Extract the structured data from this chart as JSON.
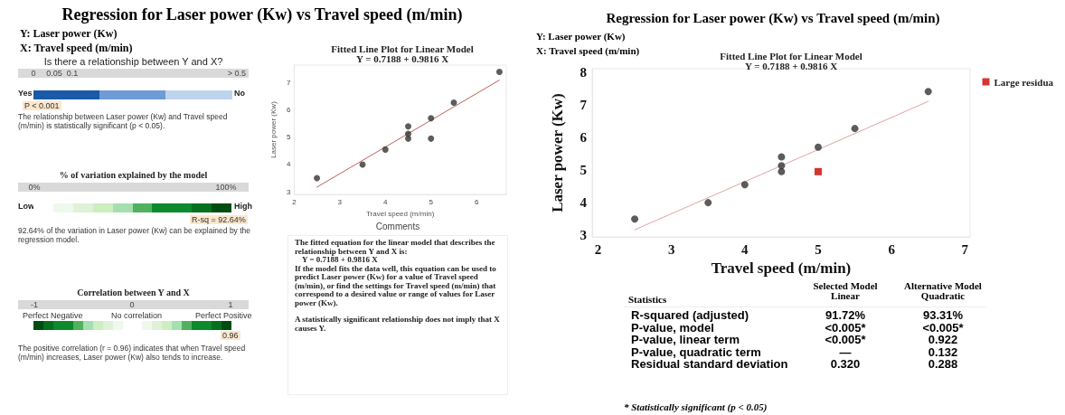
{
  "chart_data": [
    {
      "type": "other",
      "title": "Regression for Laser power (Kw) vs Travel speed (m/min)",
      "annotations": [
        "Y: Laser power (Kw)",
        "X: Travel speed (m/min)"
      ]
    },
    {
      "type": "other",
      "title": "Is there a relationship between Y and X?",
      "categories": [
        "0",
        "0.05",
        "0.1",
        "> 0.5"
      ],
      "colors": [
        "#1a5aa8",
        "#6f9bd6",
        "#bed3ee"
      ],
      "annotations": [
        "Yes",
        "No",
        "P < 0.001",
        "The relationship between Laser power (Kw) and Travel speed (m/min) is statistically significant (p < 0.05)."
      ]
    },
    {
      "type": "other",
      "title": "% of variation explained by the model",
      "categories": [
        "0%",
        "100%"
      ],
      "colors": [
        "#ffffff",
        "#eff8ec",
        "#dff1d8",
        "#cdeebf",
        "#a5dfb0",
        "#52b15e",
        "#0c8a2c",
        "#0c8a2c",
        "#06701f",
        "#004d12"
      ],
      "annotations": [
        "Low",
        "High",
        "R-sq = 92.64%",
        "92.64% of the variation in Laser power (Kw) can be explained by the regression model."
      ]
    },
    {
      "type": "other",
      "title": "Correlation between Y and X",
      "categories": [
        "-1",
        "0",
        "1"
      ],
      "colors": [
        "#004d12",
        "#06701f",
        "#0c8a2c",
        "#0c8a2c",
        "#52b15e",
        "#a5dfb0",
        "#cdeebf",
        "#dff1d8",
        "#eff8ec",
        "#ffffff",
        "#ffffff",
        "#eff8ec",
        "#dff1d8",
        "#cdeebf",
        "#a5dfb0",
        "#52b15e",
        "#0c8a2c",
        "#0c8a2c",
        "#06701f",
        "#004d12"
      ],
      "annotations": [
        "Perfect Negative",
        "No correlation",
        "Perfect Positive",
        "0.96",
        "The positive correlation (r = 0.96) indicates that when Travel speed (m/min) increases, Laser power (Kw) also tends to increase."
      ]
    },
    {
      "type": "scatter",
      "title": "Fitted Line Plot for Linear Model",
      "subtitle": "Y = 0.7188 + 0.9816 X",
      "xlabel": "Travel speed (m/min)",
      "ylabel": "Laser power (Kw)",
      "xlim": [
        2,
        6.65
      ],
      "ylim": [
        2.9,
        7.65
      ],
      "xticks": [
        2,
        3,
        4,
        5,
        6
      ],
      "yticks": [
        3,
        4,
        5,
        6,
        7
      ],
      "grid": false,
      "legend": false,
      "marker": "circle",
      "series": [
        {
          "color": "#333333",
          "x": [
            2.5,
            3.5,
            4,
            4.5,
            4.5,
            4.5,
            5,
            5,
            5.5,
            6.5
          ],
          "values": [
            3.5,
            4.0,
            4.55,
            4.95,
            5.13,
            5.4,
            4.95,
            5.7,
            6.27,
            7.4
          ]
        },
        {
          "type": "line",
          "marker": "none",
          "line_style": "solid",
          "color": "#c0605a",
          "x": [
            2.5,
            6.5
          ],
          "values": [
            3.17,
            7.1
          ]
        }
      ]
    },
    {
      "type": "other",
      "title": "Comments",
      "annotations": [
        "The fitted equation for the linear model that describes the relationship between Y and X is:",
        "Y = 0.7188 + 0.9816 X",
        "If the model fits the data well, this equation can be used to predict Laser power (Kw) for a value of Travel speed (m/min), or find the settings for Travel speed (m/min) that correspond to a desired value or range of values for Laser power (Kw).",
        "A statistically significant relationship does not imply that X causes Y."
      ]
    },
    {
      "type": "other",
      "title": "Regression for Laser power (Kw) vs Travel speed (m/min)",
      "annotations": [
        "Y: Laser power (Kw)",
        "X: Travel speed (m/min)"
      ]
    },
    {
      "type": "scatter",
      "title": "Fitted Line Plot for Linear Model",
      "subtitle": "Y = 0.7188 + 0.9816 X",
      "xlabel": "Travel speed (m/min)",
      "ylabel": "Laser power (Kw)",
      "xlim": [
        1.92,
        7.07
      ],
      "ylim": [
        2.95,
        8.1
      ],
      "xticks": [
        2,
        3,
        4,
        5,
        6,
        7
      ],
      "yticks": [
        3,
        4,
        5,
        6,
        7,
        8
      ],
      "grid": false,
      "legend": "top right",
      "marker": "circle",
      "series": [
        {
          "color": "#333333",
          "x": [
            2.5,
            3.5,
            4,
            4.5,
            4.5,
            4.5,
            5,
            5.5,
            6.5
          ],
          "values": [
            3.5,
            4.0,
            4.55,
            4.95,
            5.13,
            5.4,
            5.7,
            6.27,
            7.4
          ]
        },
        {
          "name": "Large residua",
          "marker": "square",
          "color": "#cc0000",
          "x": [
            5
          ],
          "values": [
            4.95
          ]
        },
        {
          "type": "line",
          "marker": "none",
          "line_style": "solid",
          "color": "#dba5a5",
          "x": [
            2.5,
            6.5
          ],
          "values": [
            3.17,
            7.1
          ]
        }
      ]
    },
    {
      "type": "other",
      "title": "Statistics",
      "categories": [
        "Selected Model\nLinear",
        "Alternative Model\nQuadratic"
      ],
      "y_categories": [
        "R-squared (adjusted)",
        "P-value, model",
        "P-value, linear term",
        "P-value, quadratic term",
        "Residual standard deviation"
      ],
      "cell_labels": [
        [
          "91.72%",
          "93.31%"
        ],
        [
          "<0.005*",
          "<0.005*"
        ],
        [
          "<0.005*",
          "0.922"
        ],
        [
          "—",
          "0.132"
        ],
        [
          "0.320",
          "0.288"
        ]
      ],
      "annotations": [
        "* Statistically significant (p < 0.05)"
      ]
    }
  ]
}
